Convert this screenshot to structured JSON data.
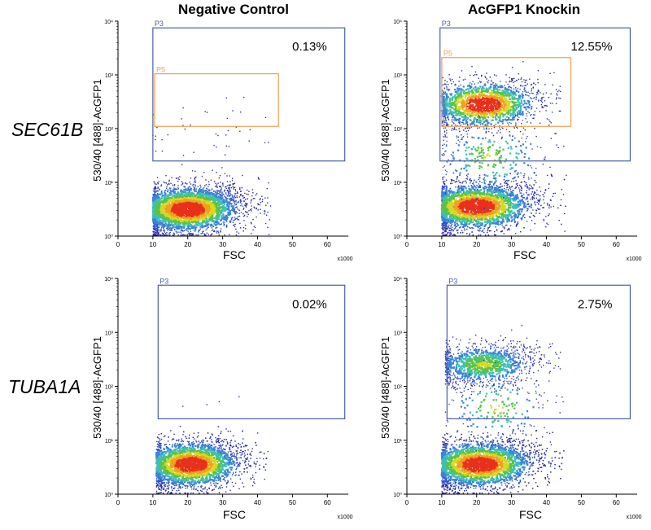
{
  "column_titles": [
    "Negative Control",
    "AcGFP1 Knockin"
  ],
  "row_labels": [
    "SEC61B",
    "TUBA1A"
  ],
  "colors": {
    "p3_gate": "#4a5fa8",
    "p5_gate": "#f0a050",
    "density_scale": [
      "#2b2fa0",
      "#2f52c4",
      "#3a86d6",
      "#3fbfb6",
      "#58c24a",
      "#d8d820",
      "#f0a020",
      "#e8301c"
    ]
  },
  "chart_data": [
    {
      "type": "scatter",
      "id": "sec61b-negative",
      "column": "Negative Control",
      "row": "SEC61B",
      "xlabel": "FSC",
      "x_unit": "x1000",
      "ylabel": "530/40 [488]-AcGFP1",
      "xlim": [
        0,
        66
      ],
      "xticks": [
        "0",
        "10",
        "20",
        "30",
        "40",
        "50",
        "60"
      ],
      "ylim_log10": [
        0,
        4
      ],
      "yticks": [
        "10⁰",
        "10¹",
        "10²",
        "10³",
        "10⁴"
      ],
      "gates": [
        {
          "name": "P3",
          "x": [
            10,
            65
          ],
          "y": [
            25,
            7500
          ],
          "percent": "0.13%"
        },
        {
          "name": "P5",
          "x": [
            10.5,
            46
          ],
          "y": [
            110,
            1050
          ],
          "percent": null
        }
      ],
      "populations": [
        {
          "label": "negative cells",
          "x_center": 20,
          "x_range": [
            10,
            44
          ],
          "y_center_log10": 0.5,
          "y_spread_log10": 0.22,
          "n": 3400
        },
        {
          "label": "gated events",
          "x_center": 26,
          "x_range": [
            10,
            46
          ],
          "y_center_log10": 1.9,
          "y_spread_log10": 0.35,
          "n": 40
        }
      ]
    },
    {
      "type": "scatter",
      "id": "sec61b-knockin",
      "column": "AcGFP1 Knockin",
      "row": "SEC61B",
      "xlabel": "FSC",
      "x_unit": "x1000",
      "ylabel": "530/40 [488]-AcGFP1",
      "xlim": [
        0,
        66
      ],
      "xticks": [
        "0",
        "10",
        "20",
        "30",
        "40",
        "50",
        "60"
      ],
      "ylim_log10": [
        0,
        4
      ],
      "yticks": [
        "10⁰",
        "10¹",
        "10²",
        "10³",
        "10⁴"
      ],
      "gates": [
        {
          "name": "P3",
          "x": [
            9.5,
            64
          ],
          "y": [
            25,
            7500
          ],
          "percent": "12.55%"
        },
        {
          "name": "P5",
          "x": [
            10,
            47
          ],
          "y": [
            110,
            2100
          ],
          "percent": null
        }
      ],
      "populations": [
        {
          "label": "negative cells",
          "x_center": 20,
          "x_range": [
            10,
            46
          ],
          "y_center_log10": 0.55,
          "y_spread_log10": 0.22,
          "n": 3600
        },
        {
          "label": "AcGFP1-positive cells",
          "x_center": 22,
          "x_range": [
            10,
            44
          ],
          "y_center_log10": 2.45,
          "y_spread_log10": 0.22,
          "n": 1700
        },
        {
          "label": "intermediate events",
          "x_center": 24,
          "x_range": [
            10,
            46
          ],
          "y_center_log10": 1.45,
          "y_spread_log10": 0.35,
          "n": 300
        }
      ]
    },
    {
      "type": "scatter",
      "id": "tuba1a-negative",
      "column": "Negative Control",
      "row": "TUBA1A",
      "xlabel": "FSC",
      "x_unit": "x1000",
      "ylabel": "530/40 [488]-AcGFP1",
      "xlim": [
        0,
        66
      ],
      "xticks": [
        "0",
        "10",
        "20",
        "30",
        "40",
        "50",
        "60"
      ],
      "ylim_log10": [
        0,
        4
      ],
      "yticks": [
        "10⁰",
        "10¹",
        "10²",
        "10³",
        "10⁴"
      ],
      "gates": [
        {
          "name": "P3",
          "x": [
            11.5,
            65
          ],
          "y": [
            25,
            7500
          ],
          "percent": "0.02%"
        }
      ],
      "populations": [
        {
          "label": "negative cells",
          "x_center": 21,
          "x_range": [
            11,
            43
          ],
          "y_center_log10": 0.55,
          "y_spread_log10": 0.22,
          "n": 3400
        },
        {
          "label": "gated events",
          "x_center": 24,
          "x_range": [
            12,
            36
          ],
          "y_center_log10": 1.7,
          "y_spread_log10": 0.1,
          "n": 4
        }
      ]
    },
    {
      "type": "scatter",
      "id": "tuba1a-knockin",
      "column": "AcGFP1 Knockin",
      "row": "TUBA1A",
      "xlabel": "FSC",
      "x_unit": "x1000",
      "ylabel": "530/40 [488]-AcGFP1",
      "xlim": [
        0,
        66
      ],
      "xticks": [
        "0",
        "10",
        "20",
        "30",
        "40",
        "50",
        "60"
      ],
      "ylim_log10": [
        0,
        4
      ],
      "yticks": [
        "10⁰",
        "10¹",
        "10²",
        "10³",
        "10⁴"
      ],
      "gates": [
        {
          "name": "P3",
          "x": [
            11.5,
            64
          ],
          "y": [
            25,
            7500
          ],
          "percent": "2.75%"
        }
      ],
      "populations": [
        {
          "label": "negative cells",
          "x_center": 21,
          "x_range": [
            10,
            45
          ],
          "y_center_log10": 0.55,
          "y_spread_log10": 0.22,
          "n": 4200
        },
        {
          "label": "AcGFP1-positive cells",
          "x_center": 22,
          "x_range": [
            11,
            44
          ],
          "y_center_log10": 2.4,
          "y_spread_log10": 0.2,
          "n": 1200
        },
        {
          "label": "intermediate events",
          "x_center": 26,
          "x_range": [
            11,
            45
          ],
          "y_center_log10": 1.6,
          "y_spread_log10": 0.35,
          "n": 200
        }
      ]
    }
  ]
}
